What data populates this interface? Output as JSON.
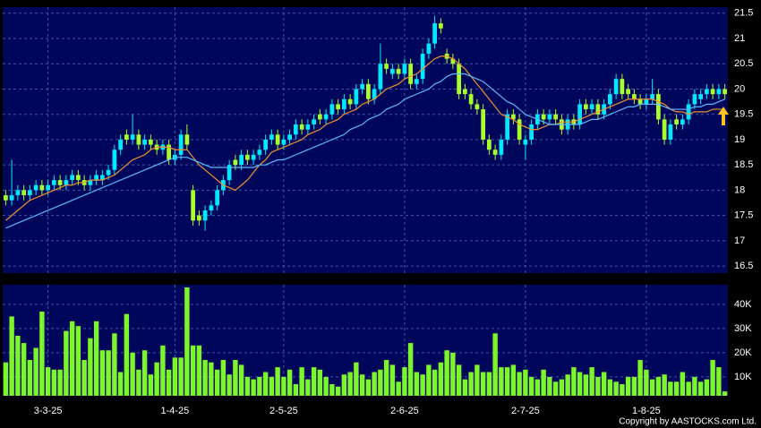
{
  "chart_data": {
    "type": "candlestick",
    "categories": [
      null,
      null,
      null,
      null,
      null,
      null,
      null,
      "3-3-25",
      null,
      null,
      null,
      null,
      null,
      null,
      null,
      null,
      null,
      null,
      null,
      null,
      null,
      null,
      null,
      null,
      null,
      null,
      null,
      null,
      "1-4-25",
      null,
      null,
      null,
      null,
      null,
      null,
      null,
      null,
      null,
      null,
      null,
      null,
      null,
      null,
      null,
      null,
      null,
      "2-5-25",
      null,
      null,
      null,
      null,
      null,
      null,
      null,
      null,
      null,
      null,
      null,
      null,
      null,
      null,
      null,
      null,
      null,
      null,
      null,
      "2-6-25",
      null,
      null,
      null,
      null,
      null,
      null,
      null,
      null,
      null,
      null,
      null,
      null,
      null,
      null,
      null,
      null,
      null,
      null,
      null,
      "2-7-25",
      null,
      null,
      null,
      null,
      null,
      null,
      null,
      null,
      null,
      null,
      null,
      null,
      null,
      null,
      null,
      null,
      null,
      null,
      null,
      "1-8-25",
      null,
      null,
      null,
      null,
      null,
      null,
      null,
      null,
      null,
      null,
      null,
      null,
      null
    ],
    "open": [
      17.9,
      17.8,
      17.9,
      18.0,
      17.9,
      18.0,
      18.1,
      18.0,
      18.1,
      18.2,
      18.1,
      18.2,
      18.3,
      18.2,
      18.1,
      18.2,
      18.2,
      18.3,
      18.4,
      18.8,
      19.1,
      19.0,
      19.1,
      18.9,
      19.0,
      18.9,
      18.8,
      18.9,
      18.6,
      18.7,
      19.1,
      18.0,
      17.5,
      17.4,
      17.6,
      17.7,
      18.0,
      18.2,
      18.6,
      18.5,
      18.7,
      18.6,
      18.7,
      18.8,
      19.0,
      19.1,
      18.9,
      19.0,
      19.1,
      19.3,
      19.2,
      19.3,
      19.5,
      19.4,
      19.5,
      19.7,
      19.6,
      19.8,
      19.7,
      20.0,
      20.1,
      19.8,
      20.0,
      20.5,
      20.3,
      20.4,
      20.3,
      20.5,
      20.1,
      20.2,
      20.7,
      20.9,
      21.3,
      20.7,
      20.6,
      20.5,
      20.0,
      19.9,
      19.7,
      19.6,
      19.0,
      18.8,
      18.7,
      19.0,
      19.5,
      19.4,
      18.9,
      19.0,
      19.3,
      19.5,
      19.4,
      19.5,
      19.4,
      19.2,
      19.4,
      19.3,
      19.7,
      19.6,
      19.7,
      19.5,
      19.7,
      19.9,
      20.2,
      20.0,
      19.9,
      19.8,
      19.7,
      19.8,
      19.9,
      19.4,
      19.0,
      19.4,
      19.3,
      19.4,
      19.7,
      19.8,
      19.9,
      20.0,
      19.9,
      20.0
    ],
    "high": [
      18.0,
      18.6,
      18.1,
      18.1,
      18.1,
      18.2,
      18.2,
      18.2,
      18.3,
      18.3,
      18.3,
      18.4,
      18.4,
      18.3,
      18.3,
      18.4,
      18.4,
      18.5,
      18.9,
      19.1,
      19.2,
      19.5,
      19.2,
      19.1,
      19.1,
      19.0,
      19.0,
      19.0,
      18.8,
      19.2,
      19.3,
      18.1,
      17.6,
      17.7,
      17.8,
      18.1,
      18.3,
      18.6,
      18.7,
      18.8,
      18.8,
      18.8,
      18.9,
      19.1,
      19.2,
      19.2,
      19.1,
      19.2,
      19.4,
      19.4,
      19.4,
      19.5,
      19.6,
      19.6,
      19.8,
      19.8,
      19.9,
      19.9,
      20.1,
      20.2,
      20.2,
      20.1,
      20.9,
      20.6,
      20.5,
      20.5,
      20.6,
      20.6,
      20.3,
      20.8,
      21.0,
      21.45,
      21.4,
      20.8,
      20.7,
      20.6,
      20.1,
      20.0,
      19.8,
      19.7,
      19.1,
      18.9,
      19.1,
      19.6,
      19.6,
      19.5,
      19.1,
      19.4,
      19.6,
      19.6,
      19.6,
      19.6,
      19.5,
      19.5,
      19.5,
      19.8,
      19.8,
      19.8,
      19.8,
      19.8,
      20.0,
      20.3,
      20.3,
      20.1,
      20.0,
      19.9,
      19.9,
      20.2,
      20.0,
      19.5,
      19.4,
      19.5,
      19.5,
      19.8,
      20.0,
      20.0,
      20.1,
      20.1,
      20.1,
      20.1
    ],
    "low": [
      17.7,
      17.7,
      17.8,
      17.8,
      17.8,
      17.9,
      17.9,
      17.9,
      18.0,
      18.0,
      18.0,
      18.1,
      18.1,
      18.0,
      18.0,
      18.1,
      18.1,
      18.2,
      18.3,
      18.7,
      18.9,
      18.9,
      18.8,
      18.8,
      18.8,
      18.7,
      18.7,
      18.5,
      18.5,
      18.6,
      18.8,
      17.3,
      17.3,
      17.2,
      17.5,
      17.6,
      17.9,
      18.1,
      18.4,
      18.4,
      18.5,
      18.5,
      18.6,
      18.7,
      18.9,
      18.8,
      18.8,
      18.9,
      19.0,
      19.1,
      19.1,
      19.2,
      19.3,
      19.3,
      19.4,
      19.5,
      19.5,
      19.6,
      19.6,
      19.9,
      19.7,
      19.7,
      19.9,
      20.3,
      20.2,
      20.2,
      20.2,
      20.0,
      20.0,
      20.1,
      20.6,
      20.8,
      21.1,
      20.5,
      20.4,
      19.8,
      19.8,
      19.6,
      19.5,
      18.9,
      18.7,
      18.6,
      18.6,
      18.9,
      19.3,
      18.9,
      18.6,
      18.9,
      19.2,
      19.3,
      19.3,
      19.3,
      19.1,
      19.1,
      19.2,
      19.2,
      19.5,
      19.5,
      19.4,
      19.4,
      19.6,
      19.8,
      19.8,
      19.8,
      19.7,
      19.6,
      19.6,
      19.7,
      19.3,
      18.9,
      18.9,
      19.2,
      19.2,
      19.3,
      19.6,
      19.7,
      19.8,
      19.8,
      19.8,
      19.8
    ],
    "close": [
      17.8,
      17.9,
      18.0,
      17.9,
      18.0,
      18.1,
      18.0,
      18.1,
      18.2,
      18.1,
      18.2,
      18.3,
      18.2,
      18.1,
      18.2,
      18.3,
      18.3,
      18.4,
      18.8,
      19.0,
      19.0,
      19.1,
      18.9,
      19.0,
      18.9,
      18.8,
      18.9,
      18.6,
      18.7,
      19.1,
      18.9,
      17.4,
      17.4,
      17.6,
      17.7,
      18.0,
      18.2,
      18.5,
      18.5,
      18.7,
      18.6,
      18.7,
      18.8,
      19.0,
      19.1,
      18.9,
      19.0,
      19.1,
      19.3,
      19.2,
      19.3,
      19.4,
      19.4,
      19.5,
      19.7,
      19.6,
      19.8,
      19.7,
      20.0,
      20.1,
      19.8,
      20.0,
      20.5,
      20.4,
      20.4,
      20.3,
      20.5,
      20.1,
      20.2,
      20.7,
      20.9,
      21.3,
      21.2,
      20.6,
      20.5,
      19.9,
      19.9,
      19.7,
      19.6,
      19.0,
      18.8,
      18.7,
      19.0,
      19.5,
      19.4,
      19.0,
      19.0,
      19.3,
      19.5,
      19.4,
      19.5,
      19.4,
      19.2,
      19.4,
      19.3,
      19.7,
      19.6,
      19.7,
      19.5,
      19.7,
      19.9,
      20.2,
      19.9,
      19.9,
      19.8,
      19.7,
      19.8,
      19.9,
      19.4,
      19.0,
      19.3,
      19.3,
      19.4,
      19.7,
      19.9,
      19.9,
      20.0,
      19.9,
      20.0,
      19.9
    ],
    "up_color": "#00e8ff",
    "down_color": "#a8ff2e",
    "lines": [
      {
        "color": "#f0902e",
        "values": [
          17.4,
          17.5,
          17.6,
          17.7,
          17.8,
          17.85,
          17.9,
          17.95,
          18.0,
          18.05,
          18.1,
          18.1,
          18.15,
          18.15,
          18.2,
          18.2,
          18.2,
          18.25,
          18.3,
          18.4,
          18.5,
          18.6,
          18.65,
          18.7,
          18.8,
          18.85,
          18.85,
          18.85,
          18.8,
          18.8,
          18.8,
          18.65,
          18.5,
          18.4,
          18.3,
          18.2,
          18.1,
          18.05,
          18.0,
          18.1,
          18.2,
          18.35,
          18.5,
          18.6,
          18.75,
          18.8,
          18.85,
          18.9,
          18.95,
          19.0,
          19.1,
          19.15,
          19.2,
          19.3,
          19.35,
          19.4,
          19.5,
          19.55,
          19.6,
          19.7,
          19.75,
          19.8,
          19.9,
          20.0,
          20.05,
          20.1,
          20.2,
          20.25,
          20.3,
          20.4,
          20.5,
          20.6,
          20.65,
          20.65,
          20.6,
          20.5,
          20.4,
          20.25,
          20.1,
          19.95,
          19.8,
          19.65,
          19.5,
          19.45,
          19.4,
          19.3,
          19.25,
          19.2,
          19.2,
          19.25,
          19.3,
          19.3,
          19.35,
          19.35,
          19.35,
          19.4,
          19.45,
          19.5,
          19.55,
          19.6,
          19.65,
          19.7,
          19.75,
          19.8,
          19.8,
          19.8,
          19.8,
          19.8,
          19.75,
          19.7,
          19.6,
          19.55,
          19.55,
          19.5,
          19.55,
          19.55,
          19.55,
          19.6,
          19.6,
          19.6
        ]
      },
      {
        "color": "#5cb8ff",
        "values": [
          17.25,
          17.3,
          17.35,
          17.4,
          17.45,
          17.5,
          17.55,
          17.6,
          17.65,
          17.7,
          17.75,
          17.8,
          17.85,
          17.9,
          17.95,
          18.0,
          18.05,
          18.1,
          18.15,
          18.2,
          18.25,
          18.3,
          18.35,
          18.4,
          18.45,
          18.5,
          18.55,
          18.6,
          18.65,
          18.65,
          18.65,
          18.6,
          18.55,
          18.5,
          18.45,
          18.45,
          18.45,
          18.45,
          18.45,
          18.45,
          18.45,
          18.45,
          18.5,
          18.5,
          18.55,
          18.6,
          18.6,
          18.65,
          18.7,
          18.75,
          18.8,
          18.85,
          18.9,
          18.95,
          19.0,
          19.05,
          19.1,
          19.2,
          19.25,
          19.3,
          19.4,
          19.45,
          19.5,
          19.6,
          19.65,
          19.7,
          19.8,
          19.85,
          19.9,
          19.95,
          20.0,
          20.1,
          20.15,
          20.25,
          20.3,
          20.3,
          20.3,
          20.25,
          20.2,
          20.15,
          20.05,
          19.95,
          19.85,
          19.75,
          19.7,
          19.6,
          19.5,
          19.45,
          19.4,
          19.35,
          19.3,
          19.3,
          19.3,
          19.3,
          19.3,
          19.3,
          19.35,
          19.4,
          19.4,
          19.45,
          19.5,
          19.55,
          19.6,
          19.65,
          19.65,
          19.7,
          19.7,
          19.7,
          19.7,
          19.65,
          19.6,
          19.6,
          19.6,
          19.6,
          19.65,
          19.65,
          19.7,
          19.7,
          19.75,
          19.8
        ]
      }
    ],
    "ylim": [
      16.36,
      21.62
    ],
    "yticks": [
      16.5,
      17,
      17.5,
      18,
      18.5,
      19,
      19.5,
      20,
      20.5,
      21,
      21.5
    ],
    "grid": true,
    "volume": {
      "type": "bar",
      "color": "#7cf52a",
      "values": [
        16000,
        35000,
        27000,
        24000,
        17000,
        22000,
        37000,
        14000,
        13000,
        13000,
        29000,
        33000,
        31000,
        17000,
        26000,
        33000,
        21000,
        21000,
        28000,
        12000,
        36000,
        20000,
        13000,
        21000,
        11000,
        16000,
        23000,
        13000,
        18000,
        18000,
        47000,
        23000,
        23000,
        17000,
        16000,
        13000,
        17000,
        11000,
        17000,
        15000,
        10000,
        9000,
        10000,
        12000,
        10000,
        14000,
        10000,
        13000,
        7000,
        14000,
        9000,
        14000,
        13000,
        10000,
        7000,
        6000,
        11000,
        12000,
        16000,
        11000,
        9000,
        12000,
        13000,
        17000,
        15000,
        8000,
        14000,
        24000,
        12000,
        11000,
        15000,
        13000,
        16000,
        21000,
        20000,
        15000,
        9000,
        12000,
        15000,
        12000,
        12000,
        28000,
        14000,
        14000,
        15000,
        12000,
        13000,
        10000,
        9000,
        13000,
        10000,
        8000,
        9000,
        11000,
        14000,
        12000,
        11000,
        14000,
        10000,
        12000,
        9000,
        8000,
        7000,
        10000,
        10000,
        17000,
        13000,
        9000,
        10000,
        11000,
        8000,
        8000,
        12000,
        8000,
        10000,
        8000,
        9000,
        17000,
        14000,
        4000
      ],
      "ylim": [
        2200,
        48100
      ],
      "yticks": [
        {
          "value": 10000,
          "label": "10K"
        },
        {
          "value": 20000,
          "label": "20K"
        },
        {
          "value": 30000,
          "label": "30K"
        },
        {
          "value": 40000,
          "label": "40K"
        }
      ]
    }
  },
  "copyright": "Copyright by AASTOCKS.com Ltd."
}
